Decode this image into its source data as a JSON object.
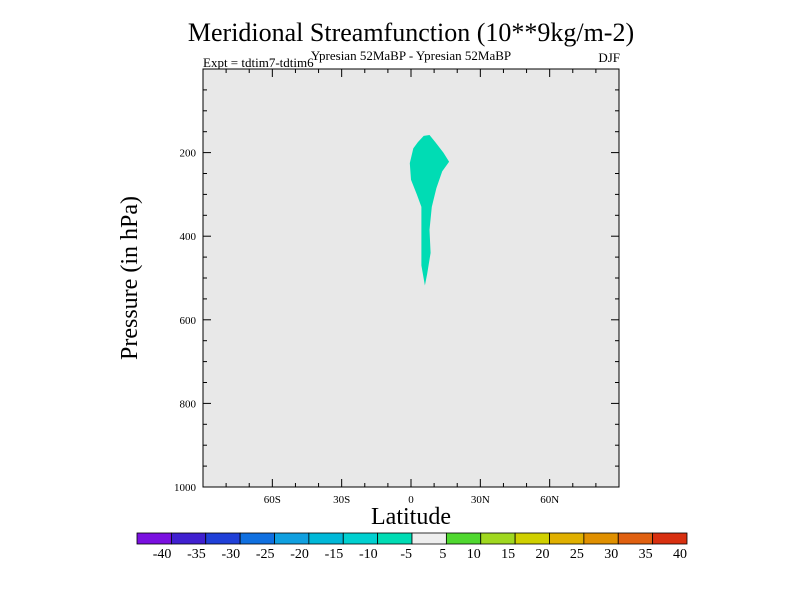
{
  "chart_data": {
    "type": "filled-contour",
    "title": "Meridional Streamfunction (10**9kg/m-2)",
    "subtitle": "Ypresian  52MaBP - Ypresian  52MaBP",
    "experiment": "Expt = tdtim7-tdtim6",
    "season": "DJF",
    "xlabel": "Latitude",
    "ylabel": "Pressure (in hPa)",
    "xlim": [
      -90,
      90
    ],
    "ylim": [
      1000,
      0
    ],
    "x_ticks": [
      {
        "value": -60,
        "label": "60S"
      },
      {
        "value": -30,
        "label": "30S"
      },
      {
        "value": 0,
        "label": "0"
      },
      {
        "value": 30,
        "label": "30N"
      },
      {
        "value": 60,
        "label": "60N"
      }
    ],
    "y_ticks": [
      {
        "value": 200,
        "label": "200"
      },
      {
        "value": 400,
        "label": "400"
      },
      {
        "value": 600,
        "label": "600"
      },
      {
        "value": 800,
        "label": "800"
      },
      {
        "value": 1000,
        "label": "1000"
      }
    ],
    "background_color": "#e8e8e8",
    "contour_levels": [
      -40,
      -35,
      -30,
      -25,
      -20,
      -15,
      -10,
      -5,
      5,
      10,
      15,
      20,
      25,
      30,
      35,
      40
    ],
    "colorbar_colors": [
      "#7a10e0",
      "#4020d0",
      "#2040d8",
      "#1070e0",
      "#10a0e0",
      "#00b8d8",
      "#00d0d0",
      "#00dcb4",
      "#eeeeee",
      "#50d830",
      "#a0d820",
      "#d0d000",
      "#e0b000",
      "#e09000",
      "#e06010",
      "#d83010"
    ],
    "filled_region": {
      "color": "#00dcb4",
      "range": "-10 to -5",
      "outline": [
        [
          5.5,
          160
        ],
        [
          8,
          158
        ],
        [
          10.5,
          175
        ],
        [
          14,
          200
        ],
        [
          16.5,
          222
        ],
        [
          13.5,
          245
        ],
        [
          11,
          285
        ],
        [
          9,
          330
        ],
        [
          8,
          385
        ],
        [
          8.5,
          440
        ],
        [
          7,
          490
        ],
        [
          6,
          518
        ],
        [
          4.5,
          470
        ],
        [
          4.5,
          330
        ],
        [
          2.5,
          300
        ],
        [
          0,
          265
        ],
        [
          -0.5,
          225
        ],
        [
          1,
          190
        ],
        [
          3,
          175
        ]
      ]
    }
  }
}
